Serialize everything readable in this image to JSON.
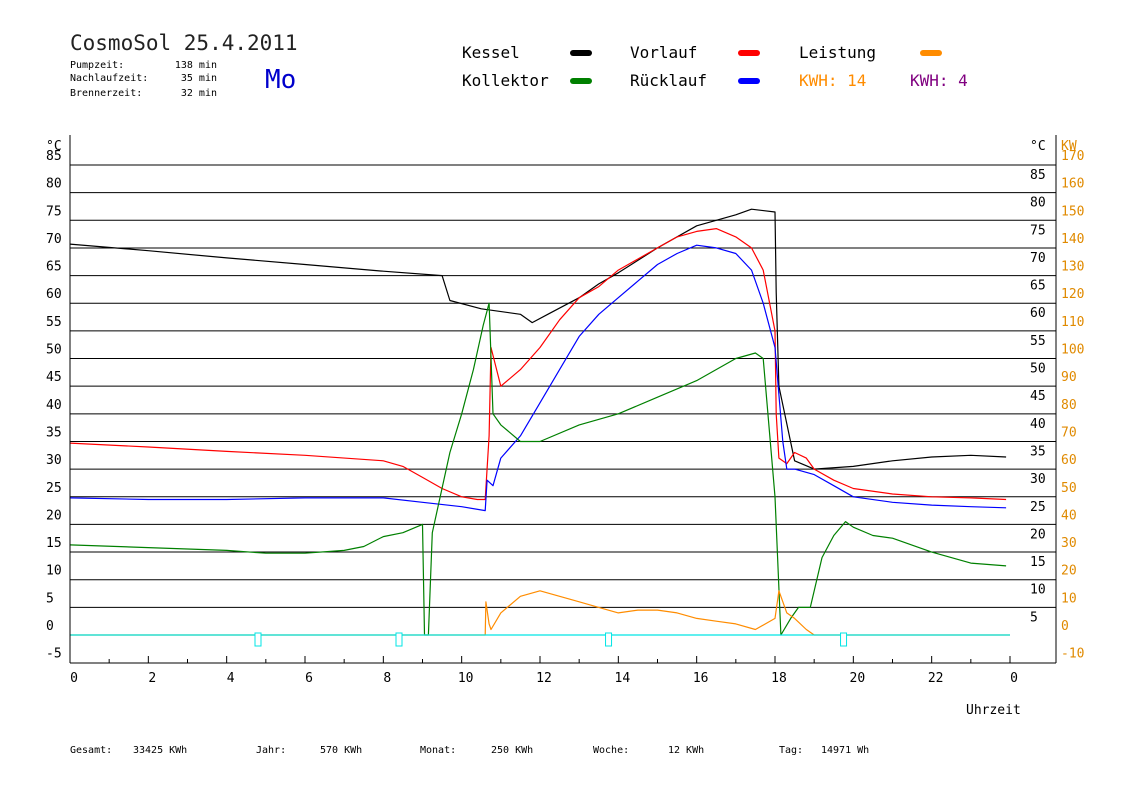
{
  "header": {
    "title": "CosmoSol 25.4.2011",
    "day": "Mo",
    "info": [
      {
        "label": "Pumpzeit:",
        "value": "138 min"
      },
      {
        "label": "Nachlaufzeit:",
        "value": "35 min"
      },
      {
        "label": "Brennerzeit:",
        "value": "32 min"
      }
    ]
  },
  "legend": {
    "items": [
      {
        "name": "Kessel",
        "color": "#000000"
      },
      {
        "name": "Vorlauf",
        "color": "#ff0000"
      },
      {
        "name": "Leistung",
        "color": "#ff8c00"
      },
      {
        "name": "Kollektor",
        "color": "#008000"
      },
      {
        "name": "Rücklauf",
        "color": "#0000ff"
      }
    ],
    "kwh_orange": "KWH: 14",
    "kwh_purple": "KWH: 4"
  },
  "footer": [
    {
      "label": "Gesamt:",
      "value": "33425 KWh"
    },
    {
      "label": "Jahr:",
      "value": "570 KWh"
    },
    {
      "label": "Monat:",
      "value": "250 KWh"
    },
    {
      "label": "Woche:",
      "value": "12 KWh"
    },
    {
      "label": "Tag:",
      "value": "14971 Wh"
    }
  ],
  "chart_data": {
    "type": "line",
    "xlabel": "Uhrzeit",
    "ylabel_left": "°C",
    "ylabel_right_c": "°C",
    "ylabel_right_kw": "KW",
    "xlim": [
      0,
      24
    ],
    "ylim": [
      -5,
      85
    ],
    "x_ticks": [
      "0",
      "2",
      "4",
      "6",
      "8",
      "10",
      "12",
      "14",
      "16",
      "18",
      "20",
      "22",
      "0"
    ],
    "y_ticks_left": [
      "85",
      "80",
      "75",
      "70",
      "65",
      "60",
      "55",
      "50",
      "45",
      "40",
      "35",
      "30",
      "25",
      "20",
      "15",
      "10",
      "5",
      "0",
      "-5"
    ],
    "y_ticks_right_c": [
      "85",
      "80",
      "75",
      "70",
      "65",
      "60",
      "55",
      "50",
      "45",
      "40",
      "35",
      "30",
      "25",
      "20",
      "15",
      "10",
      "5"
    ],
    "y_ticks_right_kw": [
      "170",
      "160",
      "150",
      "140",
      "130",
      "120",
      "110",
      "100",
      "90",
      "80",
      "70",
      "60",
      "50",
      "40",
      "30",
      "20",
      "10",
      "0",
      "-10"
    ],
    "grid": true,
    "series": [
      {
        "name": "Kessel",
        "color": "#000000",
        "x": [
          0,
          2,
          4,
          6,
          8,
          9.5,
          9.7,
          10.5,
          11.5,
          11.8,
          12.2,
          13,
          13.5,
          14,
          15,
          16,
          17,
          17.4,
          18,
          18.03,
          18.1,
          18.5,
          19,
          20,
          21,
          22,
          23,
          23.9
        ],
        "y": [
          70.7,
          69.5,
          68.2,
          67,
          65.8,
          65,
          60.5,
          59,
          58,
          56.5,
          58,
          61,
          63.5,
          65.5,
          70,
          74,
          76,
          77,
          76.5,
          62,
          45,
          31.5,
          30,
          30.5,
          31.5,
          32.2,
          32.5,
          32.2
        ]
      },
      {
        "name": "Vorlauf",
        "color": "#ff0000",
        "x": [
          0,
          2,
          4,
          6,
          8,
          8.5,
          9,
          9.5,
          10,
          10.4,
          10.6,
          10.7,
          10.75,
          11,
          11.5,
          12,
          12.5,
          13,
          13.5,
          14,
          14.5,
          15,
          15.5,
          16,
          16.5,
          17,
          17.4,
          17.7,
          18,
          18.03,
          18.1,
          18.3,
          18.5,
          18.8,
          19,
          19.5,
          20,
          21,
          22,
          23,
          23.9
        ],
        "y": [
          34.7,
          34,
          33.2,
          32.5,
          31.5,
          30.5,
          28.5,
          26.5,
          25,
          24.5,
          24.5,
          36,
          52,
          45,
          48,
          52,
          57,
          61,
          63,
          66,
          68,
          70,
          72,
          73,
          73.5,
          72,
          70,
          66,
          55,
          40,
          32,
          31,
          33,
          32,
          30,
          28,
          26.5,
          25.5,
          25,
          24.8,
          24.5
        ]
      },
      {
        "name": "Rücklauf",
        "color": "#0000ff",
        "x": [
          0,
          2,
          4,
          6,
          8,
          9,
          10,
          10.6,
          10.65,
          10.8,
          11,
          11.5,
          12,
          12.5,
          13,
          13.5,
          14,
          14.5,
          15,
          15.5,
          16,
          16.5,
          17,
          17.4,
          17.7,
          18,
          18.2,
          18.3,
          18.5,
          19,
          19.5,
          20,
          21,
          22,
          23,
          23.9
        ],
        "y": [
          24.8,
          24.5,
          24.5,
          24.8,
          24.8,
          24,
          23.2,
          22.5,
          28,
          27,
          32,
          36,
          42,
          48,
          54,
          58,
          61,
          64,
          67,
          69,
          70.5,
          70,
          69,
          66,
          60,
          52,
          35,
          30,
          30,
          29,
          27,
          25,
          24,
          23.5,
          23.2,
          23
        ]
      },
      {
        "name": "Kollektor",
        "color": "#008000",
        "x": [
          0,
          2,
          4,
          5,
          6,
          7,
          7.5,
          8,
          8.5,
          9,
          9.05,
          9.15,
          9.25,
          9.7,
          10,
          10.3,
          10.55,
          10.7,
          10.8,
          11,
          11.5,
          12,
          13,
          14,
          15,
          16,
          17,
          17.5,
          17.7,
          18,
          18.15,
          18.4,
          18.6,
          18.9,
          19.2,
          19.5,
          19.8,
          20,
          20.5,
          21,
          22,
          23,
          23.9
        ],
        "y": [
          16.3,
          15.8,
          15.3,
          14.8,
          14.8,
          15.3,
          16,
          17.8,
          18.5,
          20,
          0,
          0,
          18.5,
          33,
          40,
          48,
          56,
          60,
          40,
          38,
          35,
          35,
          38,
          40,
          43,
          46,
          50,
          51,
          50,
          25,
          0,
          3,
          5,
          5,
          14,
          18,
          20.5,
          19.5,
          18,
          17.5,
          15,
          13,
          12.5
        ]
      },
      {
        "name": "Leistung",
        "color": "#ff8c00",
        "x": [
          0,
          10.6,
          10.62,
          10.7,
          10.75,
          11,
          11.5,
          12,
          12.5,
          13,
          13.5,
          14,
          14.5,
          15,
          15.5,
          16,
          16.5,
          17,
          17.5,
          18,
          18.1,
          18.3,
          18.5,
          18.8,
          19,
          19.1,
          24
        ],
        "y": [
          0,
          0,
          6,
          2,
          1,
          4,
          7,
          8,
          7,
          6,
          5,
          4,
          4.5,
          4.5,
          4,
          3,
          2.5,
          2,
          1,
          3,
          8,
          4,
          3,
          1,
          0,
          0,
          0
        ]
      },
      {
        "name": "Pumpe",
        "color": "#00e5e5",
        "x": [
          0,
          24
        ],
        "y": [
          0,
          0
        ]
      }
    ]
  }
}
